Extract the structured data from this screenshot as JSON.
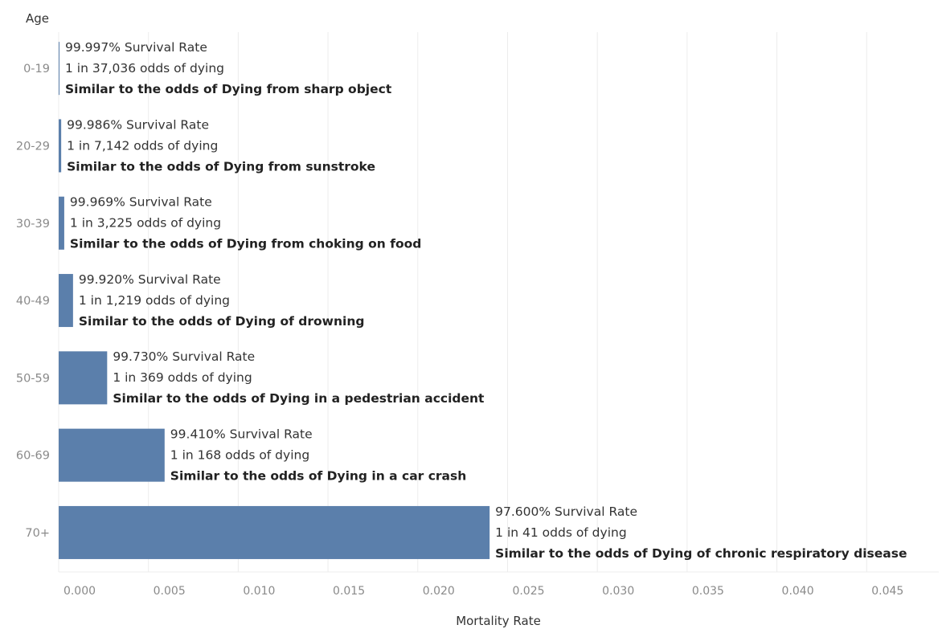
{
  "chart_data": {
    "type": "bar",
    "orientation": "horizontal",
    "title": "",
    "xlabel": "Mortality Rate",
    "ylabel": "Age",
    "xlim": [
      0,
      0.049
    ],
    "x_ticks": [
      "0.000",
      "0.005",
      "0.010",
      "0.015",
      "0.020",
      "0.025",
      "0.030",
      "0.035",
      "0.040",
      "0.045"
    ],
    "grid": "vertical gridlines",
    "bar_color": "#5b7fab",
    "categories": [
      "0-19",
      "20-29",
      "30-39",
      "40-49",
      "50-59",
      "60-69",
      "70+"
    ],
    "values": [
      3e-05,
      0.00014,
      0.00031,
      0.0008,
      0.0027,
      0.0059,
      0.024
    ],
    "annotations": [
      {
        "survival": "99.997% Survival Rate",
        "odds": "1 in 37,036 odds of dying",
        "similar": "Similar to the odds of Dying from sharp object"
      },
      {
        "survival": "99.986% Survival Rate",
        "odds": "1 in 7,142 odds of dying",
        "similar": "Similar to the odds of Dying from sunstroke"
      },
      {
        "survival": "99.969% Survival Rate",
        "odds": "1 in 3,225 odds of dying",
        "similar": "Similar to the odds of Dying from choking on food"
      },
      {
        "survival": "99.920% Survival Rate",
        "odds": "1 in 1,219 odds of dying",
        "similar": "Similar to the odds of Dying of drowning"
      },
      {
        "survival": "99.730% Survival Rate",
        "odds": "1 in 369 odds of dying",
        "similar": "Similar to the odds of Dying in a pedestrian accident"
      },
      {
        "survival": "99.410% Survival Rate",
        "odds": "1 in 168 odds of dying",
        "similar": "Similar to the odds of Dying in a car crash"
      },
      {
        "survival": "97.600% Survival Rate",
        "odds": "1 in 41 odds of dying",
        "similar": "Similar to the odds of Dying of chronic respiratory disease"
      }
    ]
  }
}
